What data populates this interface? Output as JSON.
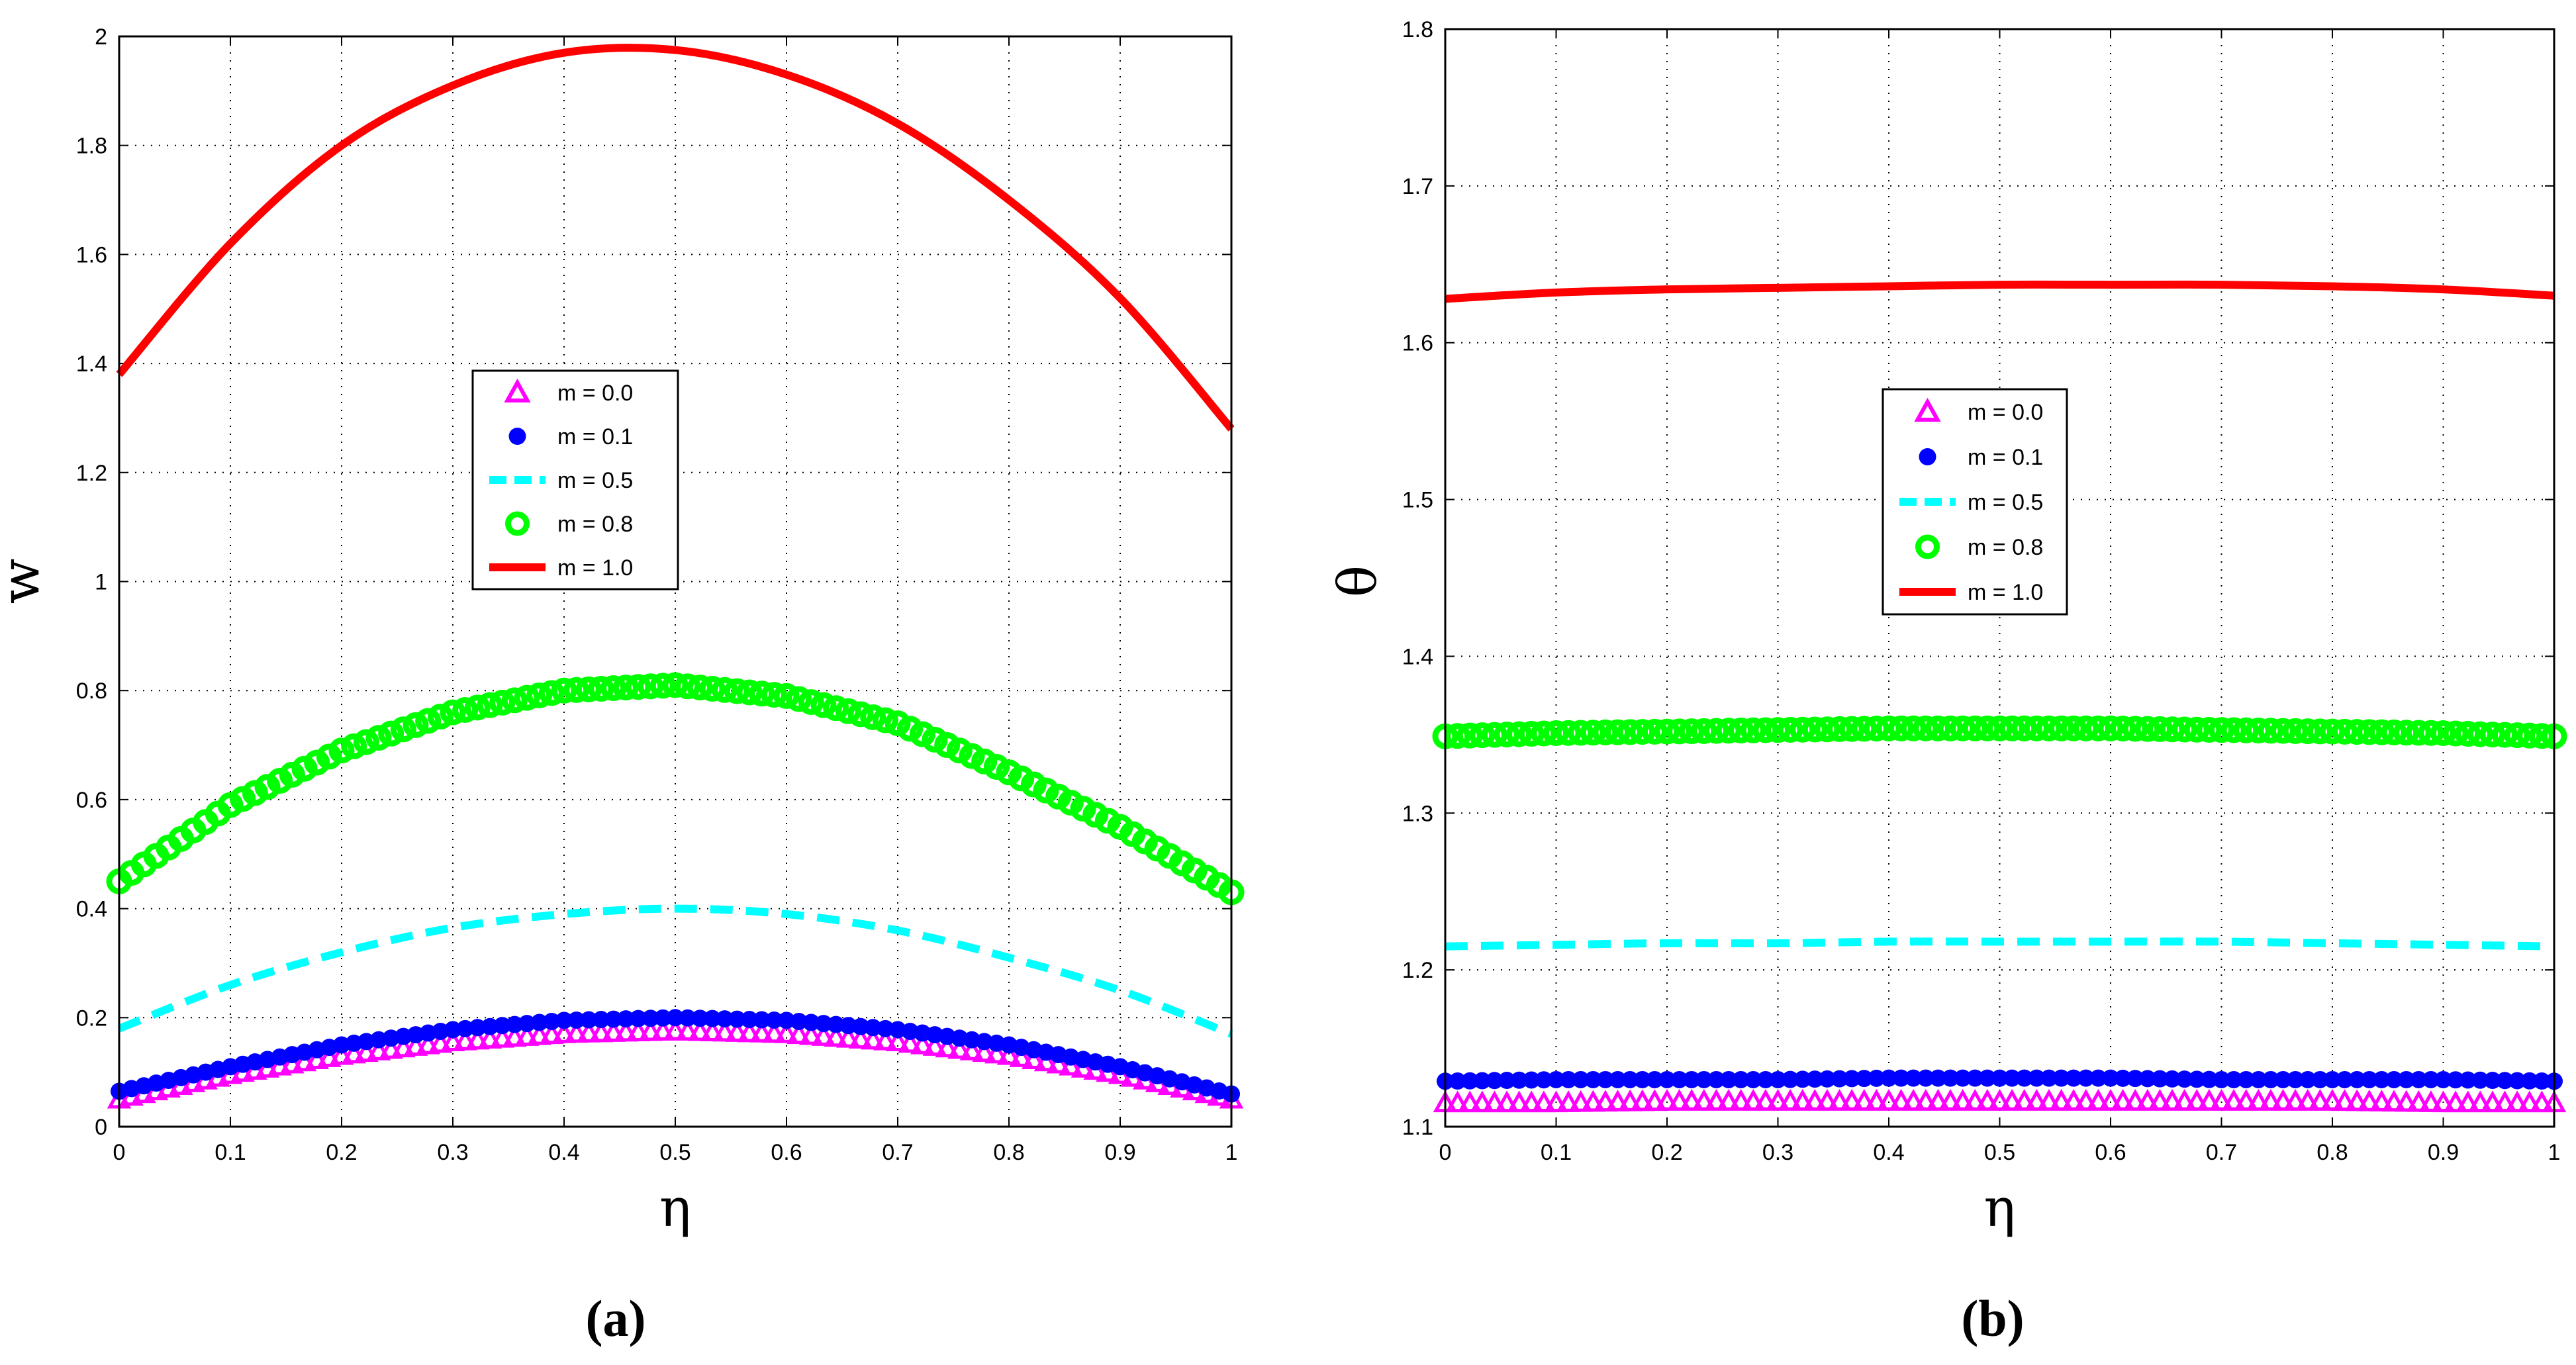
{
  "chart_data": [
    {
      "type": "line",
      "panel_label": "(a)",
      "xlabel": "η",
      "ylabel": "w",
      "xlim": [
        0,
        1
      ],
      "ylim": [
        0,
        2
      ],
      "xticks": [
        "0",
        "0.1",
        "0.2",
        "0.3",
        "0.4",
        "0.5",
        "0.6",
        "0.7",
        "0.8",
        "0.9",
        "1"
      ],
      "yticks": [
        "0",
        "0.2",
        "0.4",
        "0.6",
        "0.8",
        "1",
        "1.2",
        "1.4",
        "1.6",
        "1.8",
        "2"
      ],
      "grid": true,
      "legend_position": "center",
      "series": [
        {
          "name": "m = 0.0",
          "color": "#ff00ff",
          "marker": "triangle",
          "x": [
            0,
            0.1,
            0.2,
            0.3,
            0.4,
            0.5,
            0.6,
            0.7,
            0.8,
            0.9,
            1.0
          ],
          "y": [
            0.05,
            0.095,
            0.13,
            0.155,
            0.17,
            0.175,
            0.17,
            0.155,
            0.13,
            0.095,
            0.05
          ]
        },
        {
          "name": "m = 0.1",
          "color": "#0000ff",
          "marker": "dot",
          "x": [
            0,
            0.1,
            0.2,
            0.3,
            0.4,
            0.5,
            0.6,
            0.7,
            0.8,
            0.9,
            1.0
          ],
          "y": [
            0.065,
            0.11,
            0.15,
            0.178,
            0.195,
            0.2,
            0.195,
            0.178,
            0.15,
            0.11,
            0.06
          ]
        },
        {
          "name": "m = 0.5",
          "color": "#00ffff",
          "marker": "dashed",
          "x": [
            0,
            0.1,
            0.2,
            0.3,
            0.4,
            0.5,
            0.6,
            0.7,
            0.8,
            0.9,
            1.0
          ],
          "y": [
            0.18,
            0.26,
            0.32,
            0.365,
            0.39,
            0.4,
            0.39,
            0.36,
            0.31,
            0.25,
            0.17
          ]
        },
        {
          "name": "m = 0.8",
          "color": "#00ff00",
          "marker": "circle",
          "x": [
            0,
            0.1,
            0.2,
            0.3,
            0.4,
            0.5,
            0.6,
            0.7,
            0.8,
            0.9,
            1.0
          ],
          "y": [
            0.45,
            0.59,
            0.69,
            0.76,
            0.8,
            0.81,
            0.79,
            0.74,
            0.65,
            0.55,
            0.43
          ]
        },
        {
          "name": "m = 1.0",
          "color": "#ff0000",
          "marker": "solid",
          "x": [
            0,
            0.1,
            0.2,
            0.3,
            0.4,
            0.5,
            0.6,
            0.7,
            0.8,
            0.9,
            1.0
          ],
          "y": [
            1.38,
            1.62,
            1.8,
            1.91,
            1.97,
            1.975,
            1.93,
            1.84,
            1.7,
            1.52,
            1.28
          ]
        }
      ]
    },
    {
      "type": "line",
      "panel_label": "(b)",
      "xlabel": "η",
      "ylabel": "θ",
      "xlim": [
        0,
        1
      ],
      "ylim": [
        1.1,
        1.8
      ],
      "xticks": [
        "0",
        "0.1",
        "0.2",
        "0.3",
        "0.4",
        "0.5",
        "0.6",
        "0.7",
        "0.8",
        "0.9",
        "1"
      ],
      "yticks": [
        "1.1",
        "1.2",
        "1.3",
        "1.4",
        "1.5",
        "1.6",
        "1.7",
        "1.8"
      ],
      "grid": true,
      "legend_position": "center",
      "series": [
        {
          "name": "m = 0.0",
          "color": "#ff00ff",
          "marker": "triangle",
          "x": [
            0,
            0.1,
            0.2,
            0.3,
            0.4,
            0.5,
            0.6,
            0.7,
            0.8,
            0.9,
            1.0
          ],
          "y": [
            1.115,
            1.115,
            1.116,
            1.116,
            1.116,
            1.116,
            1.116,
            1.116,
            1.116,
            1.115,
            1.115
          ]
        },
        {
          "name": "m = 0.1",
          "color": "#0000ff",
          "marker": "dot",
          "x": [
            0,
            0.1,
            0.2,
            0.3,
            0.4,
            0.5,
            0.6,
            0.7,
            0.8,
            0.9,
            1.0
          ],
          "y": [
            1.129,
            1.13,
            1.13,
            1.13,
            1.131,
            1.131,
            1.131,
            1.13,
            1.13,
            1.13,
            1.129
          ]
        },
        {
          "name": "m = 0.5",
          "color": "#00ffff",
          "marker": "dashed",
          "x": [
            0,
            0.1,
            0.2,
            0.3,
            0.4,
            0.5,
            0.6,
            0.7,
            0.8,
            0.9,
            1.0
          ],
          "y": [
            1.215,
            1.216,
            1.217,
            1.217,
            1.218,
            1.218,
            1.218,
            1.218,
            1.217,
            1.216,
            1.215
          ]
        },
        {
          "name": "m = 0.8",
          "color": "#00ff00",
          "marker": "circle",
          "x": [
            0,
            0.1,
            0.2,
            0.3,
            0.4,
            0.5,
            0.6,
            0.7,
            0.8,
            0.9,
            1.0
          ],
          "y": [
            1.349,
            1.351,
            1.352,
            1.353,
            1.354,
            1.354,
            1.354,
            1.353,
            1.352,
            1.351,
            1.349
          ]
        },
        {
          "name": "m = 1.0",
          "color": "#ff0000",
          "marker": "solid",
          "x": [
            0,
            0.1,
            0.2,
            0.3,
            0.4,
            0.5,
            0.6,
            0.7,
            0.8,
            0.9,
            1.0
          ],
          "y": [
            1.628,
            1.632,
            1.634,
            1.635,
            1.636,
            1.637,
            1.637,
            1.637,
            1.636,
            1.634,
            1.63
          ]
        }
      ]
    }
  ]
}
